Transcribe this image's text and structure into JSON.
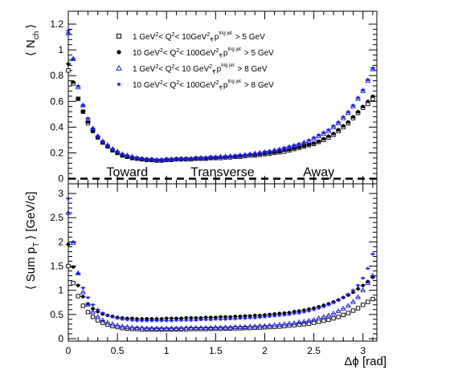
{
  "chart_data": [
    {
      "type": "scatter",
      "panel": "top",
      "ylabel": "⟨ N_ch ⟩",
      "xlim": [
        0,
        3.1416
      ],
      "ylim": [
        -0.04,
        1.3
      ],
      "yticks": [
        "0",
        "0.2",
        "0.4",
        "0.6",
        "0.8",
        "1",
        "1.2"
      ],
      "xticks": [
        "0",
        "0.5",
        "1",
        "1.5",
        "2",
        "2.5",
        "3"
      ],
      "x": [
        0.0,
        0.05,
        0.1,
        0.15,
        0.2,
        0.25,
        0.3,
        0.35,
        0.4,
        0.45,
        0.5,
        0.55,
        0.6,
        0.65,
        0.7,
        0.75,
        0.8,
        0.85,
        0.9,
        0.95,
        1.0,
        1.05,
        1.1,
        1.15,
        1.2,
        1.25,
        1.3,
        1.35,
        1.4,
        1.45,
        1.5,
        1.55,
        1.6,
        1.65,
        1.7,
        1.75,
        1.8,
        1.85,
        1.9,
        1.95,
        2.0,
        2.05,
        2.1,
        2.15,
        2.2,
        2.25,
        2.3,
        2.35,
        2.4,
        2.45,
        2.5,
        2.55,
        2.6,
        2.65,
        2.7,
        2.75,
        2.8,
        2.85,
        2.9,
        2.95,
        3.0,
        3.05,
        3.1
      ],
      "series": [
        {
          "name": "1 GeV² < Q² < 10GeV², p_T^trig jet > 5 GeV",
          "marker": "open-square",
          "color": "#000000",
          "values": [
            0.84,
            0.74,
            0.62,
            0.52,
            0.43,
            0.37,
            0.32,
            0.28,
            0.25,
            0.22,
            0.2,
            0.18,
            0.17,
            0.16,
            0.155,
            0.15,
            0.145,
            0.145,
            0.14,
            0.14,
            0.145,
            0.145,
            0.15,
            0.15,
            0.15,
            0.15,
            0.155,
            0.155,
            0.155,
            0.16,
            0.16,
            0.16,
            0.165,
            0.165,
            0.17,
            0.17,
            0.175,
            0.18,
            0.18,
            0.185,
            0.19,
            0.195,
            0.2,
            0.205,
            0.21,
            0.22,
            0.23,
            0.24,
            0.25,
            0.26,
            0.27,
            0.285,
            0.3,
            0.32,
            0.34,
            0.37,
            0.4,
            0.43,
            0.47,
            0.51,
            0.55,
            0.58,
            0.62
          ]
        },
        {
          "name": "10 GeV² < Q² < 100GeV², p_T^trig jet > 5 GeV",
          "marker": "filled-circle",
          "color": "#000000",
          "values": [
            0.89,
            0.75,
            0.62,
            0.52,
            0.44,
            0.37,
            0.32,
            0.28,
            0.25,
            0.22,
            0.2,
            0.18,
            0.17,
            0.16,
            0.155,
            0.15,
            0.15,
            0.145,
            0.145,
            0.145,
            0.15,
            0.15,
            0.15,
            0.15,
            0.155,
            0.155,
            0.155,
            0.16,
            0.16,
            0.16,
            0.165,
            0.165,
            0.17,
            0.17,
            0.175,
            0.175,
            0.18,
            0.185,
            0.185,
            0.19,
            0.195,
            0.2,
            0.205,
            0.21,
            0.22,
            0.225,
            0.235,
            0.245,
            0.255,
            0.265,
            0.275,
            0.29,
            0.31,
            0.33,
            0.35,
            0.38,
            0.41,
            0.44,
            0.48,
            0.52,
            0.56,
            0.6,
            0.64
          ]
        },
        {
          "name": "1 GeV² < Q² < 10 GeV², p_T^trig jet > 8 GeV",
          "marker": "open-triangle",
          "color": "#1a1adc",
          "values": [
            1.13,
            0.93,
            0.71,
            0.57,
            0.46,
            0.39,
            0.33,
            0.29,
            0.26,
            0.23,
            0.21,
            0.19,
            0.18,
            0.17,
            0.16,
            0.155,
            0.15,
            0.15,
            0.145,
            0.145,
            0.15,
            0.15,
            0.15,
            0.155,
            0.155,
            0.155,
            0.16,
            0.16,
            0.16,
            0.165,
            0.165,
            0.17,
            0.17,
            0.175,
            0.175,
            0.18,
            0.185,
            0.19,
            0.195,
            0.2,
            0.205,
            0.21,
            0.22,
            0.225,
            0.235,
            0.245,
            0.255,
            0.265,
            0.28,
            0.29,
            0.31,
            0.33,
            0.35,
            0.37,
            0.4,
            0.43,
            0.47,
            0.51,
            0.56,
            0.62,
            0.68,
            0.76,
            0.85
          ]
        },
        {
          "name": "10 GeV² < Q² < 100GeV², p_T^trig jet > 8 GeV",
          "marker": "filled-star",
          "color": "#1a1adc",
          "values": [
            1.15,
            0.93,
            0.72,
            0.57,
            0.47,
            0.39,
            0.33,
            0.29,
            0.26,
            0.23,
            0.21,
            0.19,
            0.18,
            0.17,
            0.16,
            0.155,
            0.15,
            0.15,
            0.15,
            0.15,
            0.15,
            0.15,
            0.155,
            0.155,
            0.155,
            0.16,
            0.16,
            0.16,
            0.165,
            0.165,
            0.17,
            0.17,
            0.175,
            0.175,
            0.18,
            0.185,
            0.185,
            0.19,
            0.195,
            0.2,
            0.21,
            0.215,
            0.22,
            0.23,
            0.24,
            0.25,
            0.26,
            0.27,
            0.28,
            0.3,
            0.32,
            0.34,
            0.36,
            0.38,
            0.41,
            0.44,
            0.48,
            0.52,
            0.57,
            0.63,
            0.69,
            0.77,
            0.86
          ]
        }
      ],
      "legend_placement": "top-center",
      "annotations": [
        {
          "text": "Toward",
          "x": 0.6
        },
        {
          "text": "Transverse",
          "x": 1.57
        },
        {
          "text": "Away",
          "x": 2.55
        }
      ],
      "dashed_line_y": 0.0
    },
    {
      "type": "scatter",
      "panel": "bottom",
      "ylabel": "⟨ Sum p_T ⟩ [GeV/c]",
      "xlabel": "Δϕ [rad]",
      "xlim": [
        0,
        3.1416
      ],
      "ylim": [
        -0.05,
        3.2
      ],
      "yticks": [
        "0",
        "0.5",
        "1",
        "1.5",
        "2",
        "2.5",
        "3"
      ],
      "xticks": [
        "0",
        "0.5",
        "1",
        "1.5",
        "2",
        "2.5",
        "3"
      ],
      "x": [
        0.0,
        0.05,
        0.1,
        0.15,
        0.2,
        0.25,
        0.3,
        0.35,
        0.4,
        0.45,
        0.5,
        0.55,
        0.6,
        0.65,
        0.7,
        0.75,
        0.8,
        0.85,
        0.9,
        0.95,
        1.0,
        1.05,
        1.1,
        1.15,
        1.2,
        1.25,
        1.3,
        1.35,
        1.4,
        1.45,
        1.5,
        1.55,
        1.6,
        1.65,
        1.7,
        1.75,
        1.8,
        1.85,
        1.9,
        1.95,
        2.0,
        2.05,
        2.1,
        2.15,
        2.2,
        2.25,
        2.3,
        2.35,
        2.4,
        2.45,
        2.5,
        2.55,
        2.6,
        2.65,
        2.7,
        2.75,
        2.8,
        2.85,
        2.9,
        2.95,
        3.0,
        3.05,
        3.1
      ],
      "series": [
        {
          "name": "1 GeV² < Q² < 10GeV², p_T^trig jet > 5 GeV",
          "marker": "open-square",
          "color": "#000000",
          "values": [
            1.5,
            1.15,
            0.88,
            0.68,
            0.55,
            0.45,
            0.38,
            0.33,
            0.29,
            0.26,
            0.24,
            0.22,
            0.21,
            0.2,
            0.2,
            0.19,
            0.19,
            0.19,
            0.19,
            0.19,
            0.19,
            0.19,
            0.195,
            0.195,
            0.195,
            0.2,
            0.2,
            0.2,
            0.2,
            0.205,
            0.205,
            0.205,
            0.21,
            0.21,
            0.215,
            0.215,
            0.22,
            0.22,
            0.225,
            0.23,
            0.235,
            0.24,
            0.245,
            0.25,
            0.26,
            0.27,
            0.28,
            0.29,
            0.3,
            0.31,
            0.33,
            0.35,
            0.37,
            0.39,
            0.42,
            0.45,
            0.49,
            0.53,
            0.58,
            0.63,
            0.7,
            0.76,
            0.82
          ]
        },
        {
          "name": "10 GeV² < Q² < 100GeV², p_T^trig jet > 5 GeV",
          "marker": "filled-circle",
          "color": "#000000",
          "values": [
            1.95,
            1.48,
            1.1,
            0.87,
            0.72,
            0.62,
            0.56,
            0.51,
            0.48,
            0.46,
            0.44,
            0.43,
            0.42,
            0.42,
            0.41,
            0.41,
            0.41,
            0.41,
            0.41,
            0.41,
            0.42,
            0.42,
            0.42,
            0.42,
            0.43,
            0.43,
            0.43,
            0.43,
            0.44,
            0.44,
            0.44,
            0.45,
            0.45,
            0.45,
            0.46,
            0.46,
            0.47,
            0.47,
            0.48,
            0.48,
            0.49,
            0.5,
            0.51,
            0.52,
            0.53,
            0.54,
            0.56,
            0.57,
            0.59,
            0.61,
            0.63,
            0.66,
            0.69,
            0.72,
            0.76,
            0.8,
            0.85,
            0.9,
            0.96,
            1.03,
            1.1,
            1.18,
            1.27
          ]
        },
        {
          "name": "1 GeV² < Q² < 10 GeV², p_T^trig jet > 8 GeV",
          "marker": "open-triangle",
          "color": "#1a1adc",
          "values": [
            2.6,
            1.98,
            1.35,
            0.96,
            0.7,
            0.55,
            0.45,
            0.38,
            0.33,
            0.3,
            0.27,
            0.25,
            0.24,
            0.23,
            0.22,
            0.22,
            0.21,
            0.21,
            0.21,
            0.21,
            0.21,
            0.21,
            0.21,
            0.21,
            0.22,
            0.22,
            0.22,
            0.22,
            0.22,
            0.22,
            0.23,
            0.23,
            0.23,
            0.23,
            0.24,
            0.24,
            0.24,
            0.25,
            0.25,
            0.26,
            0.26,
            0.27,
            0.28,
            0.29,
            0.3,
            0.31,
            0.32,
            0.34,
            0.35,
            0.37,
            0.39,
            0.42,
            0.45,
            0.48,
            0.52,
            0.57,
            0.62,
            0.68,
            0.76,
            0.86,
            1.0,
            1.15,
            1.3
          ]
        },
        {
          "name": "10 GeV² < Q² < 100GeV², p_T^trig jet > 8 GeV",
          "marker": "filled-star",
          "color": "#1a1adc",
          "values": [
            2.9,
            2.0,
            1.35,
            1.05,
            0.85,
            0.7,
            0.6,
            0.53,
            0.48,
            0.45,
            0.42,
            0.4,
            0.39,
            0.38,
            0.37,
            0.37,
            0.37,
            0.37,
            0.37,
            0.37,
            0.37,
            0.37,
            0.38,
            0.38,
            0.38,
            0.38,
            0.38,
            0.39,
            0.39,
            0.39,
            0.4,
            0.4,
            0.4,
            0.41,
            0.41,
            0.42,
            0.42,
            0.43,
            0.43,
            0.44,
            0.45,
            0.46,
            0.47,
            0.48,
            0.49,
            0.5,
            0.52,
            0.53,
            0.55,
            0.57,
            0.6,
            0.63,
            0.66,
            0.7,
            0.74,
            0.79,
            0.85,
            0.92,
            1.0,
            1.1,
            1.25,
            1.45,
            1.75
          ]
        }
      ]
    }
  ],
  "legend": {
    "entries": [
      {
        "prefix": "1 GeV",
        "mid": "< Q",
        "q2": "< 10GeV",
        "p": ", p",
        "sup": "trig jet",
        "sub": "T",
        "cut": "> 5 GeV"
      },
      {
        "prefix": "10 GeV",
        "mid": "< Q",
        "q2": "< 100GeV",
        "p": ", p",
        "sup": "trig jet",
        "sub": "T",
        "cut": "> 5 GeV"
      },
      {
        "prefix": "1 GeV",
        "mid": "< Q",
        "q2": "< 10 GeV",
        "p": ", p",
        "sup": "trig jet",
        "sub": "T",
        "cut": "> 8 GeV"
      },
      {
        "prefix": "10 GeV",
        "mid": "< Q",
        "q2": "< 100GeV",
        "p": ", p",
        "sup": "trig jet",
        "sub": "T",
        "cut": "> 8 GeV"
      }
    ]
  },
  "labels": {
    "top_y_main": "⟨ N",
    "top_y_sub": "ch",
    "top_y_close": "⟩",
    "bottom_y_main": "⟨ Sum p",
    "bottom_y_sub": "T",
    "bottom_y_close": "⟩ [GeV/c]",
    "x_axis": "Δϕ [rad]"
  },
  "colors": {
    "black": "#000000",
    "blue": "#1a1adc"
  }
}
